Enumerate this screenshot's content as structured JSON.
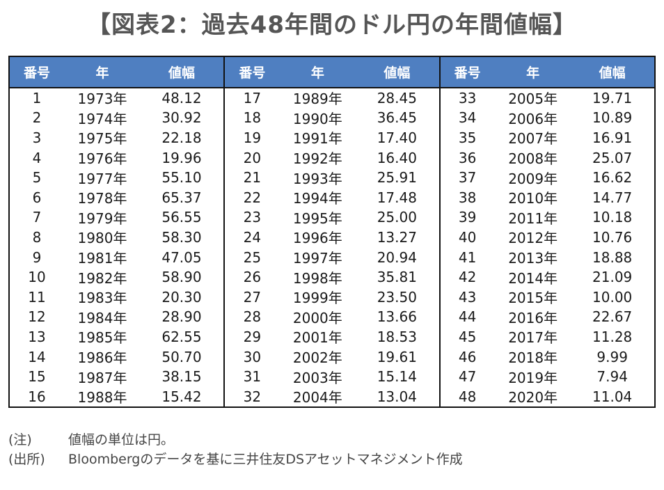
{
  "title": "【図表2：過去48年間のドル円の年間値幅】",
  "headers": [
    "番号",
    "年",
    "値幅"
  ],
  "rows": [
    {
      "no": "1",
      "year": "1973年",
      "value": "48.12"
    },
    {
      "no": "2",
      "year": "1974年",
      "value": "30.92"
    },
    {
      "no": "3",
      "year": "1975年",
      "value": "22.18"
    },
    {
      "no": "4",
      "year": "1976年",
      "value": "19.96"
    },
    {
      "no": "5",
      "year": "1977年",
      "value": "55.10"
    },
    {
      "no": "6",
      "year": "1978年",
      "value": "65.37"
    },
    {
      "no": "7",
      "year": "1979年",
      "value": "56.55"
    },
    {
      "no": "8",
      "year": "1980年",
      "value": "58.30"
    },
    {
      "no": "9",
      "year": "1981年",
      "value": "47.05"
    },
    {
      "no": "10",
      "year": "1982年",
      "value": "58.90"
    },
    {
      "no": "11",
      "year": "1983年",
      "value": "20.30"
    },
    {
      "no": "12",
      "year": "1984年",
      "value": "28.90"
    },
    {
      "no": "13",
      "year": "1985年",
      "value": "62.55"
    },
    {
      "no": "14",
      "year": "1986年",
      "value": "50.70"
    },
    {
      "no": "15",
      "year": "1987年",
      "value": "38.15"
    },
    {
      "no": "16",
      "year": "1988年",
      "value": "15.42"
    },
    {
      "no": "17",
      "year": "1989年",
      "value": "28.45"
    },
    {
      "no": "18",
      "year": "1990年",
      "value": "36.45"
    },
    {
      "no": "19",
      "year": "1991年",
      "value": "17.40"
    },
    {
      "no": "20",
      "year": "1992年",
      "value": "16.40"
    },
    {
      "no": "21",
      "year": "1993年",
      "value": "25.91"
    },
    {
      "no": "22",
      "year": "1994年",
      "value": "17.48"
    },
    {
      "no": "23",
      "year": "1995年",
      "value": "25.00"
    },
    {
      "no": "24",
      "year": "1996年",
      "value": "13.27"
    },
    {
      "no": "25",
      "year": "1997年",
      "value": "20.94"
    },
    {
      "no": "26",
      "year": "1998年",
      "value": "35.81"
    },
    {
      "no": "27",
      "year": "1999年",
      "value": "23.50"
    },
    {
      "no": "28",
      "year": "2000年",
      "value": "13.66"
    },
    {
      "no": "29",
      "year": "2001年",
      "value": "18.53"
    },
    {
      "no": "30",
      "year": "2002年",
      "value": "19.61"
    },
    {
      "no": "31",
      "year": "2003年",
      "value": "15.14"
    },
    {
      "no": "32",
      "year": "2004年",
      "value": "13.04"
    },
    {
      "no": "33",
      "year": "2005年",
      "value": "19.71"
    },
    {
      "no": "34",
      "year": "2006年",
      "value": "10.89"
    },
    {
      "no": "35",
      "year": "2007年",
      "value": "16.91"
    },
    {
      "no": "36",
      "year": "2008年",
      "value": "25.07"
    },
    {
      "no": "37",
      "year": "2009年",
      "value": "16.62"
    },
    {
      "no": "38",
      "year": "2010年",
      "value": "14.77"
    },
    {
      "no": "39",
      "year": "2011年",
      "value": "10.18"
    },
    {
      "no": "40",
      "year": "2012年",
      "value": "10.76"
    },
    {
      "no": "41",
      "year": "2013年",
      "value": "18.88"
    },
    {
      "no": "42",
      "year": "2014年",
      "value": "21.09"
    },
    {
      "no": "43",
      "year": "2015年",
      "value": "10.00"
    },
    {
      "no": "44",
      "year": "2016年",
      "value": "22.67"
    },
    {
      "no": "45",
      "year": "2017年",
      "value": "11.28"
    },
    {
      "no": "46",
      "year": "2018年",
      "value": "9.99"
    },
    {
      "no": "47",
      "year": "2019年",
      "value": "7.94"
    },
    {
      "no": "48",
      "year": "2020年",
      "value": "11.04"
    }
  ],
  "notes": [
    {
      "label": "(注)",
      "text": "値幅の単位は円。"
    },
    {
      "label": "(出所)",
      "text": "Bloombergのデータを基に三井住友DSアセットマネジメント作成"
    }
  ],
  "colors": {
    "header_bg": "#4f7fc1",
    "border": "#111111"
  }
}
